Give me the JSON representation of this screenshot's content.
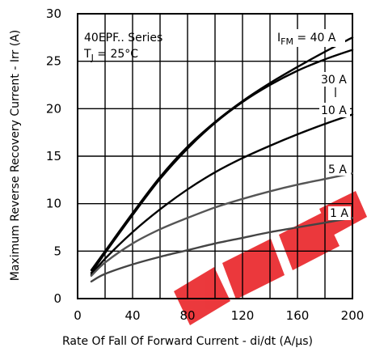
{
  "chart_data": {
    "type": "line",
    "xlabel": "Rate Of Fall Of Forward Current - di/dt (A/μs)",
    "ylabel": "Maximum Reverse Recovery Current - Irr (A)",
    "xlim": [
      0,
      200
    ],
    "ylim": [
      0,
      30
    ],
    "xticks": [
      "0",
      "40",
      "80",
      "120",
      "160",
      "200"
    ],
    "yticks": [
      "0",
      "5",
      "10",
      "15",
      "20",
      "25",
      "30"
    ],
    "grid": true,
    "annotation": {
      "series_line": "40EPF.. Series",
      "temp_main": "T",
      "temp_sub": "J",
      "temp_rest": " = 25°C"
    },
    "curve_labels": {
      "ifm_main": "I",
      "ifm_sub": "FM",
      "ifm_rest": " = 40 A",
      "label_30": "30 A",
      "label_10": "10 A",
      "label_5": "5 A",
      "label_1": "1 A"
    },
    "series": [
      {
        "name": "40 A",
        "color": "#000000",
        "x": [
          10,
          20,
          40,
          60,
          80,
          100,
          120,
          140,
          160,
          180,
          200
        ],
        "y": [
          3.0,
          5.0,
          9.0,
          12.8,
          16.0,
          18.6,
          20.8,
          22.7,
          24.4,
          26.0,
          27.5
        ]
      },
      {
        "name": "30 A",
        "color": "#000000",
        "x": [
          10,
          20,
          40,
          60,
          80,
          100,
          120,
          140,
          160,
          180,
          200
        ],
        "y": [
          2.7,
          4.8,
          8.8,
          12.6,
          15.8,
          18.5,
          20.7,
          22.5,
          24.0,
          25.2,
          26.2
        ]
      },
      {
        "name": "10 A",
        "color": "#000000",
        "x": [
          10,
          20,
          40,
          60,
          80,
          100,
          120,
          140,
          160,
          180,
          200
        ],
        "y": [
          2.5,
          4.2,
          7.0,
          9.4,
          11.5,
          13.3,
          14.8,
          16.1,
          17.3,
          18.4,
          19.4
        ]
      },
      {
        "name": "5 A",
        "color": "#555555",
        "x": [
          10,
          20,
          40,
          60,
          80,
          100,
          120,
          140,
          160,
          180,
          200
        ],
        "y": [
          2.4,
          3.8,
          5.8,
          7.3,
          8.5,
          9.6,
          10.5,
          11.3,
          12.0,
          12.6,
          13.2
        ]
      },
      {
        "name": "1 A",
        "color": "#444444",
        "x": [
          10,
          20,
          40,
          60,
          80,
          100,
          120,
          140,
          160,
          180,
          200
        ],
        "y": [
          1.8,
          2.6,
          3.6,
          4.4,
          5.1,
          5.8,
          6.4,
          7.0,
          7.5,
          8.0,
          8.5
        ]
      }
    ]
  }
}
